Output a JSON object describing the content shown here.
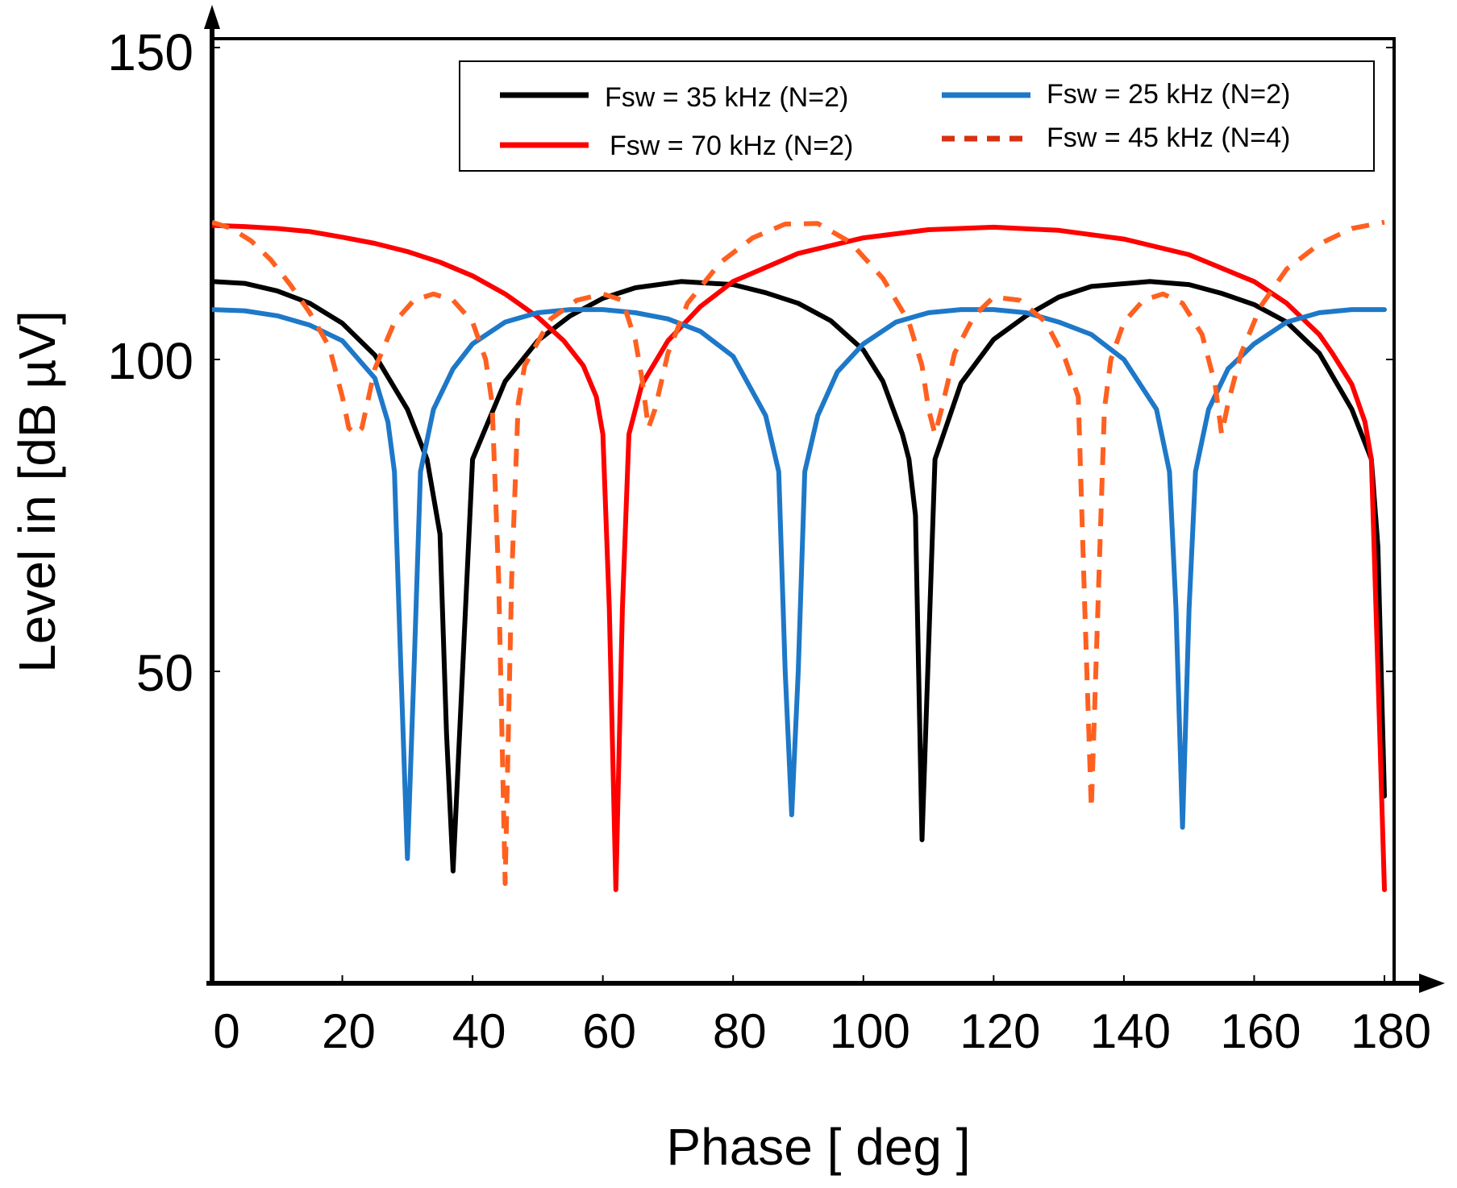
{
  "chart_data": {
    "type": "line",
    "title": "",
    "xlabel": "Phase [ deg ]",
    "ylabel": "Level in [dB µV]",
    "xlim": [
      0,
      180
    ],
    "ylim": [
      0,
      150
    ],
    "xticks": [
      0,
      20,
      40,
      60,
      80,
      100,
      120,
      140,
      160,
      180
    ],
    "yticks": [
      50,
      100,
      150
    ],
    "xtick_labels": [
      "0",
      "20",
      "40",
      "60",
      "80",
      "100",
      "120",
      "140",
      "160",
      "180"
    ],
    "ytick_labels": [
      "50",
      "100",
      "150"
    ],
    "grid": false,
    "legend_position": "top-right",
    "series": [
      {
        "name": "Fsw = 35 kHz (N=2)",
        "color": "#000000",
        "style": "solid",
        "x": [
          0,
          5,
          10,
          15,
          20,
          25,
          30,
          33,
          35,
          36,
          37,
          38,
          40,
          45,
          50,
          55,
          60,
          65,
          72,
          80,
          85,
          90,
          95,
          100,
          103,
          106,
          107,
          108,
          109,
          111,
          115,
          120,
          125,
          130,
          135,
          144,
          150,
          155,
          160,
          165,
          170,
          175,
          178,
          179,
          180
        ],
        "values": [
          112.5,
          112.2,
          111,
          109,
          105.8,
          100.7,
          92,
          84,
          72,
          40,
          18,
          40,
          84,
          96.5,
          103,
          107,
          109.8,
          111.5,
          112.5,
          112,
          110.7,
          109,
          106.2,
          101.5,
          96.5,
          88,
          84,
          75,
          23,
          84,
          96.2,
          103.2,
          107,
          110,
          111.7,
          112.5,
          112,
          110.6,
          108.8,
          106,
          101,
          92,
          84,
          70,
          30
        ]
      },
      {
        "name": "Fsw = 70 kHz (N=2)",
        "color": "#ff0000",
        "style": "solid",
        "x": [
          0,
          5,
          10,
          15,
          20,
          25,
          30,
          35,
          40,
          45,
          50,
          54,
          57,
          59,
          60,
          61,
          62,
          63,
          64,
          66,
          70,
          75,
          80,
          90,
          100,
          110,
          120,
          130,
          140,
          150,
          160,
          165,
          170,
          172,
          175,
          177,
          178,
          179,
          180
        ],
        "values": [
          121.5,
          121.3,
          121,
          120.5,
          119.6,
          118.6,
          117.3,
          115.6,
          113.4,
          110.5,
          106.8,
          103,
          99,
          94,
          88,
          60,
          15,
          60,
          88,
          96,
          103,
          108.5,
          112.5,
          117,
          119.5,
          120.8,
          121.2,
          120.7,
          119.3,
          116.8,
          112.5,
          109,
          104,
          101,
          96,
          90,
          84,
          50,
          15
        ]
      },
      {
        "name": "Fsw = 25 kHz (N=2)",
        "color": "#1e78c8",
        "style": "solid",
        "x": [
          0,
          5,
          10,
          15,
          20,
          25,
          27,
          28,
          29,
          30,
          31,
          32,
          34,
          37,
          40,
          45,
          50,
          55,
          60,
          65,
          70,
          75,
          80,
          85,
          87,
          88,
          89,
          90,
          91,
          93,
          96,
          100,
          105,
          110,
          115,
          120,
          125,
          130,
          135,
          140,
          145,
          147,
          148,
          149,
          150,
          151,
          153,
          156,
          160,
          165,
          170,
          175,
          180
        ],
        "values": [
          108,
          107.8,
          107,
          105.5,
          103,
          97,
          90,
          82,
          50,
          20,
          50,
          82,
          92,
          98.5,
          102.5,
          106,
          107.5,
          108,
          108,
          107.5,
          106.5,
          104.5,
          100.5,
          91,
          82,
          50,
          27,
          50,
          82,
          91,
          98,
          102.5,
          106,
          107.5,
          108,
          108,
          107.5,
          106,
          104,
          100,
          92,
          82,
          60,
          25,
          60,
          82,
          92,
          98.5,
          102.5,
          106,
          107.5,
          108,
          108
        ]
      },
      {
        "name": "Fsw = 45 kHz (N=4)",
        "color": "#ff6020",
        "style": "dashed",
        "x": [
          0,
          3,
          6,
          9,
          12,
          15,
          18,
          20,
          21,
          22,
          23,
          25,
          28,
          31,
          34,
          37,
          40,
          42,
          43,
          44,
          45,
          46,
          47,
          48,
          52,
          56,
          60,
          63,
          65,
          66,
          67,
          68,
          70,
          73,
          78,
          83,
          88,
          93,
          98,
          103,
          107,
          109,
          110,
          111,
          112,
          114,
          117,
          120,
          124,
          128,
          131,
          133,
          134,
          135,
          136,
          137,
          138,
          140,
          143,
          146,
          149,
          152,
          154,
          155,
          156,
          158,
          161,
          165,
          170,
          175,
          180
        ],
        "values": [
          122,
          121,
          119,
          116,
          112,
          107.5,
          102,
          94,
          89,
          88,
          89,
          98.5,
          106,
          109.5,
          110.5,
          109.5,
          106,
          100,
          93,
          65,
          16,
          65,
          93,
          99,
          106.5,
          109.5,
          110.5,
          109.5,
          103,
          97,
          89,
          92,
          101,
          109,
          115.5,
          119.5,
          121.7,
          121.8,
          118.8,
          113,
          106,
          99,
          92,
          88,
          92,
          101,
          107,
          110,
          109.5,
          106,
          100,
          94,
          60,
          28,
          60,
          92,
          100,
          106,
          109.5,
          110.5,
          109,
          104,
          96,
          88,
          93,
          101,
          108.5,
          114.5,
          118.5,
          121,
          122
        ]
      }
    ]
  }
}
